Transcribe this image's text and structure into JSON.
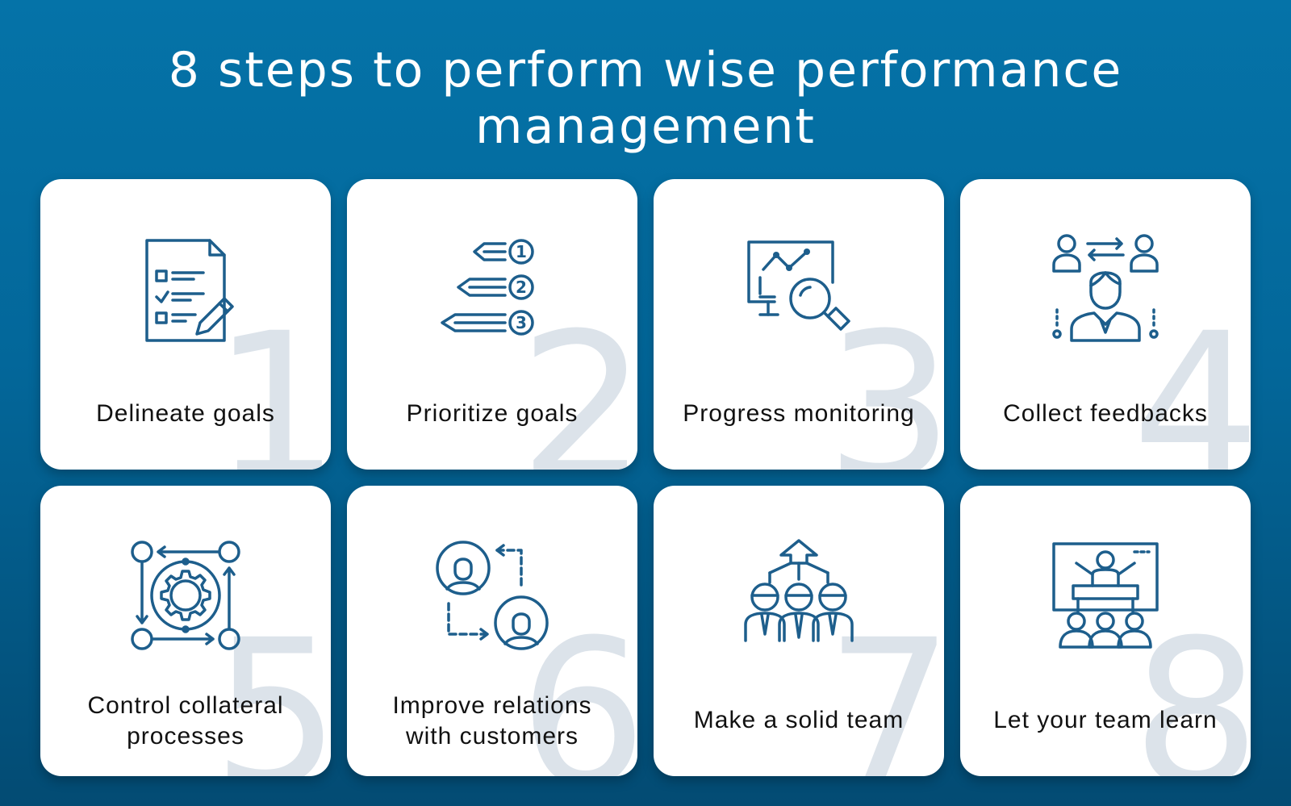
{
  "title": "8 steps to perform wise performance management",
  "accent_color": "#1d5e8c",
  "background_color": "#0573a8",
  "steps": [
    {
      "number": "1",
      "icon": "checklist-document-icon",
      "label": "Delineate goals"
    },
    {
      "number": "2",
      "icon": "numbered-arrows-icon",
      "label": "Prioritize goals"
    },
    {
      "number": "3",
      "icon": "monitor-magnifier-icon",
      "label": "Progress monitoring"
    },
    {
      "number": "4",
      "icon": "people-feedback-icon",
      "label": "Collect feedbacks"
    },
    {
      "number": "5",
      "icon": "gear-cycle-icon",
      "label_lines": [
        "Control collateral",
        "processes"
      ]
    },
    {
      "number": "6",
      "icon": "customer-relations-icon",
      "label_lines": [
        "Improve relations",
        "with customers"
      ]
    },
    {
      "number": "7",
      "icon": "team-arrow-icon",
      "label": "Make a solid team"
    },
    {
      "number": "8",
      "icon": "presentation-teaching-icon",
      "label": "Let your team learn"
    }
  ],
  "icon_digits": [
    "1",
    "2",
    "3"
  ]
}
